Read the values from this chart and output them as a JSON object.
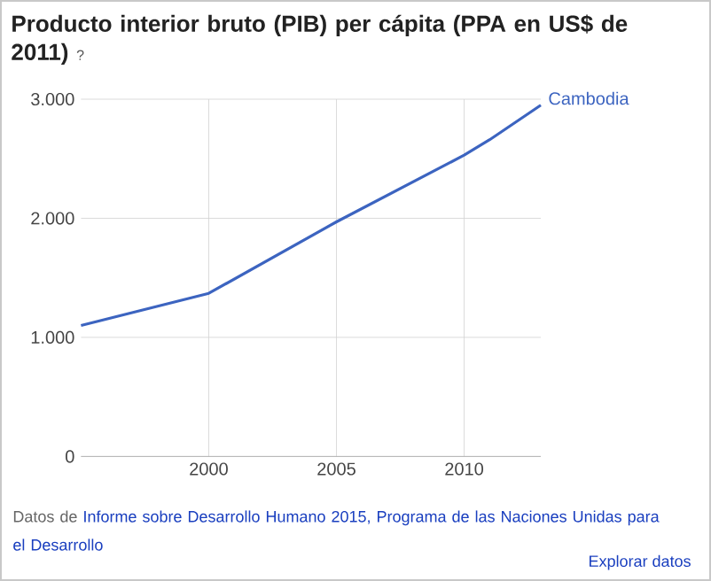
{
  "chart_data": {
    "type": "line",
    "title": "Producto interior bruto (PIB) per cápita (PPA en US$ de 2011)",
    "x": [
      1995,
      2000,
      2005,
      2010,
      2011,
      2013
    ],
    "series": [
      {
        "name": "Cambodia",
        "color": "#3c64c0",
        "values": [
          1100,
          1370,
          1970,
          2530,
          2660,
          2950
        ]
      }
    ],
    "xlim": [
      1995,
      2013
    ],
    "xticks": [
      2000,
      2005,
      2010
    ],
    "ylim": [
      0,
      3000
    ],
    "yticks": [
      0,
      {
        "value": 1000,
        "label": "1.000"
      },
      {
        "value": 2000,
        "label": "2.000"
      },
      {
        "value": 3000,
        "label": "3.000"
      }
    ],
    "grid": true,
    "legend": false,
    "marker": "none",
    "line_style": "solid",
    "annotations": [
      "?",
      "Datos de",
      "Informe sobre Desarrollo Humano 2015, Programa de las Naciones Unidas para el Desarrollo",
      "Explorar datos"
    ]
  }
}
